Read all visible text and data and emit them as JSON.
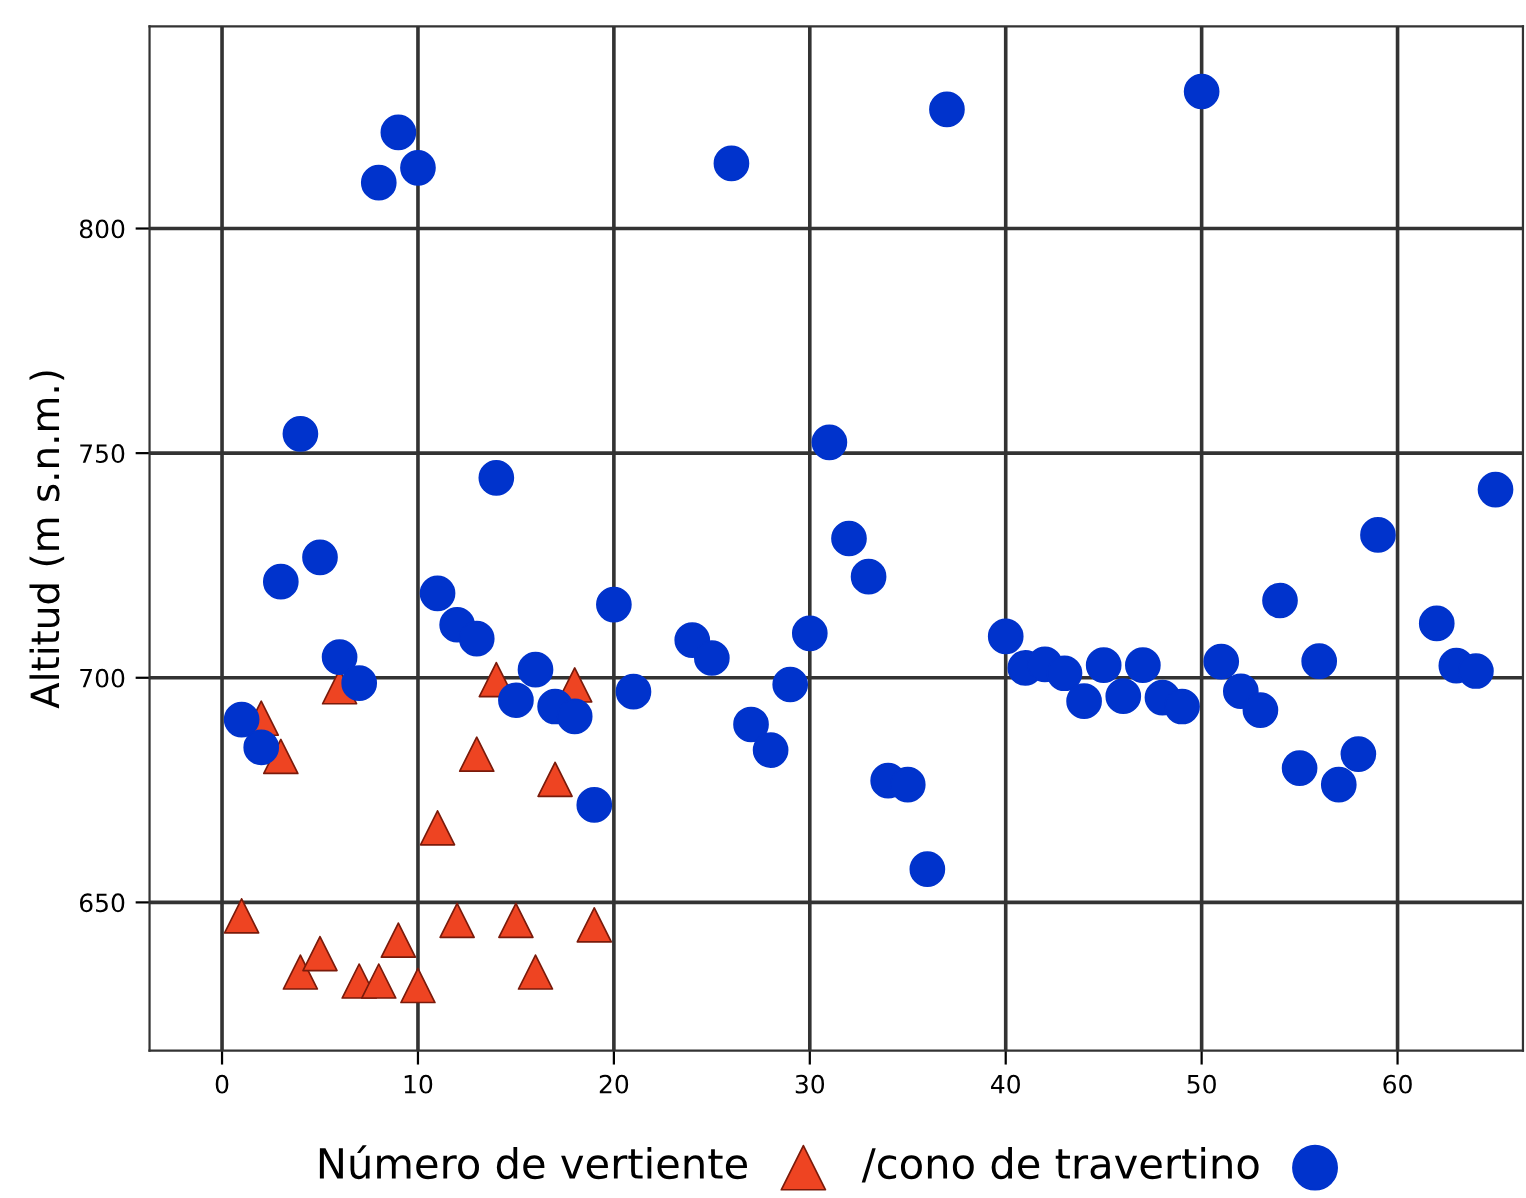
{
  "chart_data": {
    "type": "scatter",
    "ylabel": "Altitud (m s.n.m.)",
    "xlim": [
      -3.7,
      66.4
    ],
    "ylim": [
      617,
      845
    ],
    "xticks": [
      0,
      10,
      20,
      30,
      40,
      50,
      60
    ],
    "yticks": [
      650,
      700,
      750,
      800
    ],
    "grid": true,
    "legend": "bottom",
    "series": [
      {
        "name": "Número de vertiente",
        "color": "#ee4422",
        "marker": "triangle",
        "x": [
          1,
          2,
          3,
          4,
          5,
          6,
          7,
          8,
          9,
          10,
          11,
          12,
          13,
          14,
          15,
          16,
          17,
          18,
          19
        ],
        "values": [
          647,
          691,
          682.5,
          634.5,
          638.6,
          698,
          632.5,
          632.5,
          641.6,
          631.5,
          666.6,
          646,
          683,
          699.6,
          646,
          634.5,
          677.4,
          698.4,
          645
        ]
      },
      {
        "name": "/cono de travertino",
        "color": "#0033cc",
        "marker": "circle",
        "x": [
          1,
          2,
          3,
          4,
          5,
          6,
          7,
          8,
          9,
          10,
          11,
          12,
          13,
          14,
          15,
          16,
          17,
          18,
          19,
          20,
          21,
          24,
          25,
          26,
          27,
          28,
          29,
          30,
          31,
          32,
          33,
          34,
          35,
          36,
          37,
          40,
          41,
          42,
          43,
          44,
          45,
          46,
          47,
          48,
          49,
          50,
          51,
          52,
          53,
          54,
          55,
          56,
          57,
          58,
          59,
          62,
          63,
          64,
          65
        ],
        "values": [
          690.7,
          684.5,
          721.4,
          754.3,
          726.8,
          704.6,
          698.8,
          810.2,
          821.4,
          813.5,
          718.8,
          711.8,
          708.7,
          744.5,
          695,
          701.8,
          693.6,
          691.4,
          671.7,
          716.3,
          696.9,
          708.4,
          704.4,
          814.5,
          689.6,
          683.9,
          698.5,
          709.9,
          752.4,
          731,
          722.5,
          677.1,
          676.2,
          657.4,
          826.5,
          709.2,
          702.2,
          703,
          701,
          694.8,
          702.8,
          695.9,
          702.8,
          695.6,
          693.6,
          830.5,
          703.6,
          697,
          692.8,
          717.2,
          679.9,
          703.7,
          676.2,
          683,
          731.8,
          712.1,
          702.7,
          701.5,
          741.9
        ]
      }
    ]
  }
}
